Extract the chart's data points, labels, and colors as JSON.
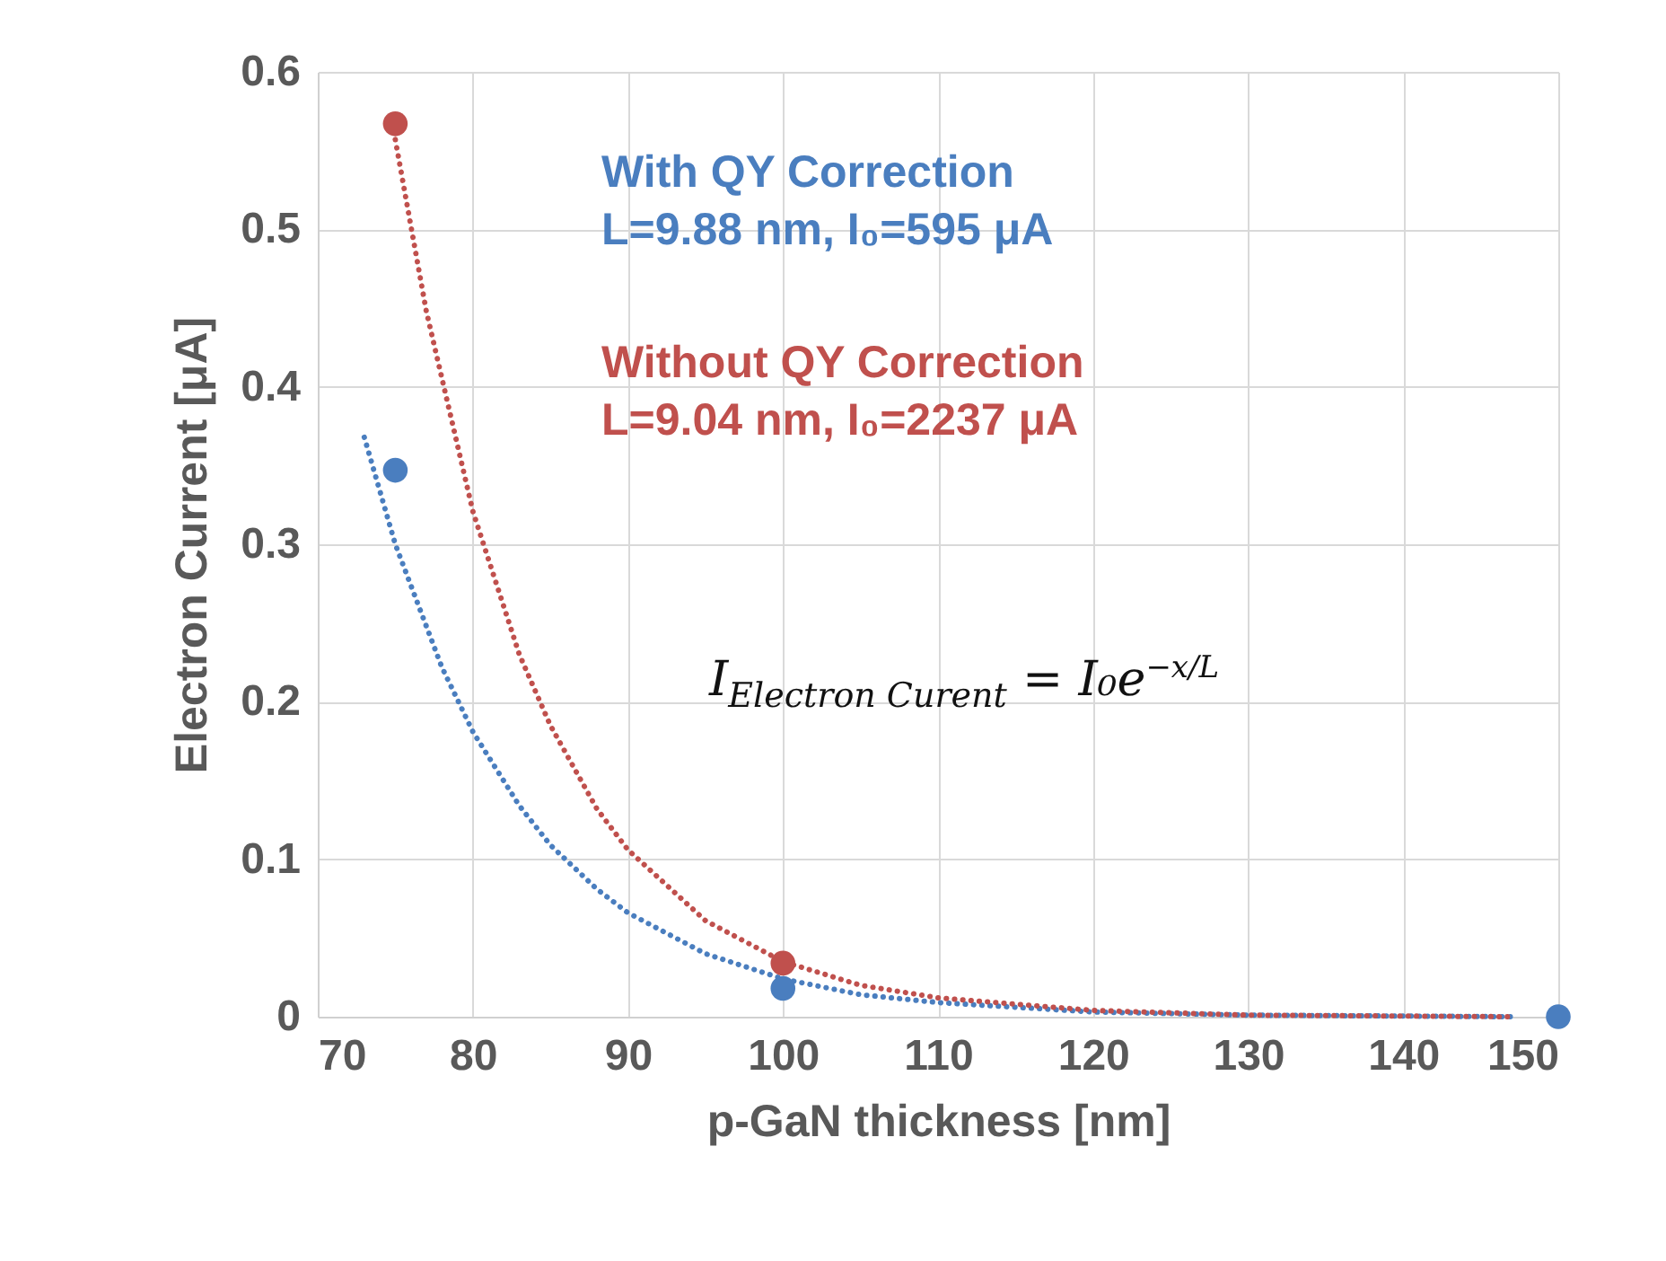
{
  "chart_data": {
    "type": "scatter",
    "xlabel": "p-GaN thickness [nm]",
    "ylabel": "Electron Current [μA]",
    "xlim": [
      70,
      150
    ],
    "xticks": [
      70,
      80,
      90,
      100,
      110,
      120,
      130,
      140,
      150
    ],
    "ylim": [
      0,
      0.6
    ],
    "yticks": [
      0,
      0.1,
      0.2,
      0.3,
      0.4,
      0.5,
      0.6
    ],
    "grid": true,
    "series": [
      {
        "name": "With QY Correction",
        "color": "#4a7ebf",
        "marker": "circle",
        "x": [
          75,
          100,
          150
        ],
        "values": [
          0.347,
          0.018,
          0
        ]
      },
      {
        "name": "Without QY Correction",
        "color": "#c0504d",
        "marker": "circle",
        "x": [
          75,
          100
        ],
        "values": [
          0.567,
          0.034
        ]
      },
      {
        "type": "line",
        "color": "#4a7ebf",
        "line_style": "dotted",
        "marker": "none",
        "x": [
          73,
          75,
          78,
          80,
          83,
          85,
          88,
          90,
          95,
          100,
          105,
          110,
          120,
          130,
          147
        ],
        "values": [
          0.368,
          0.3,
          0.222,
          0.181,
          0.134,
          0.109,
          0.081,
          0.066,
          0.04,
          0.024,
          0.014,
          0.009,
          0.003,
          0.001,
          0
        ]
      },
      {
        "type": "line",
        "color": "#c0504d",
        "line_style": "dotted",
        "marker": "none",
        "x": [
          75,
          77,
          80,
          83,
          85,
          88,
          90,
          95,
          100,
          105,
          110,
          120,
          130,
          147
        ],
        "values": [
          0.557,
          0.448,
          0.321,
          0.23,
          0.185,
          0.132,
          0.106,
          0.061,
          0.035,
          0.02,
          0.012,
          0.004,
          0.001,
          0
        ]
      }
    ],
    "annotations": [
      "L=9.88 nm, I₀=595 μA",
      "L=9.04 nm, I₀=2237 μA",
      "I$_{Electron Curent}$ = I₀e$^{−x/L}$"
    ]
  }
}
